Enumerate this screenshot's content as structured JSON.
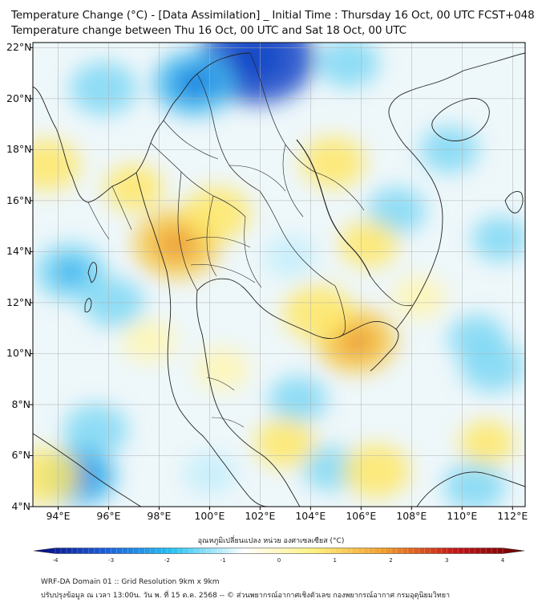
{
  "title": {
    "line1": "Temperature Change (°C) - [Data Assimilation] _ Initial Time : Thursday 16 Oct, 00 UTC FCST+048",
    "line2": "Temperature change between Thu 16 Oct, 00 UTC and Sat 18 Oct, 00 UTC"
  },
  "map": {
    "lat_labels": [
      "22°N",
      "20°N",
      "18°N",
      "16°N",
      "14°N",
      "12°N",
      "10°N",
      "8°N",
      "6°N",
      "4°N"
    ],
    "lon_labels": [
      "94°E",
      "96°E",
      "98°E",
      "100°E",
      "102°E",
      "104°E",
      "106°E",
      "108°E",
      "110°E",
      "112°E"
    ],
    "lat_range": [
      4,
      22.2
    ],
    "lon_range": [
      93,
      112.5
    ],
    "anomalies": [
      {
        "kind": "cool",
        "lon": 101.9,
        "lat": 21.6,
        "value": -2.8
      },
      {
        "kind": "cool",
        "lon": 99.4,
        "lat": 20.6,
        "value": -1.6
      },
      {
        "kind": "cool",
        "lon": 95.8,
        "lat": 20.4,
        "value": -1.1
      },
      {
        "kind": "cool",
        "lon": 105.5,
        "lat": 21.4,
        "value": -0.9
      },
      {
        "kind": "cool",
        "lon": 94.5,
        "lat": 13.2,
        "value": -1.3
      },
      {
        "kind": "cool",
        "lon": 96.2,
        "lat": 12.0,
        "value": -0.9
      },
      {
        "kind": "cool",
        "lon": 95.5,
        "lat": 7.0,
        "value": -1.0
      },
      {
        "kind": "cool",
        "lon": 94.8,
        "lat": 5.2,
        "value": -1.4
      },
      {
        "kind": "cool",
        "lon": 103.5,
        "lat": 8.2,
        "value": -0.8
      },
      {
        "kind": "cool",
        "lon": 104.8,
        "lat": 5.5,
        "value": -0.7
      },
      {
        "kind": "cool",
        "lon": 110.6,
        "lat": 10.6,
        "value": -0.8
      },
      {
        "kind": "cool",
        "lon": 111.2,
        "lat": 9.5,
        "value": -1.0
      },
      {
        "kind": "cool",
        "lon": 109.5,
        "lat": 18.0,
        "value": -0.8
      },
      {
        "kind": "cool",
        "lon": 111.5,
        "lat": 14.5,
        "value": -0.7
      },
      {
        "kind": "cool",
        "lon": 107.4,
        "lat": 15.6,
        "value": -0.8
      },
      {
        "kind": "cool",
        "lon": 103.2,
        "lat": 13.8,
        "value": -0.6
      },
      {
        "kind": "cool",
        "lon": 110.5,
        "lat": 4.8,
        "value": -0.9
      },
      {
        "kind": "cool",
        "lon": 100.0,
        "lat": 5.3,
        "value": -0.6
      },
      {
        "kind": "warm",
        "lon": 98.7,
        "lat": 14.3,
        "value": 1.8
      },
      {
        "kind": "warm",
        "lon": 100.3,
        "lat": 15.5,
        "value": 1.1
      },
      {
        "kind": "warm",
        "lon": 93.6,
        "lat": 17.4,
        "value": 1.0
      },
      {
        "kind": "warm",
        "lon": 97.0,
        "lat": 16.5,
        "value": 0.8
      },
      {
        "kind": "warm",
        "lon": 105.8,
        "lat": 10.5,
        "value": 1.6
      },
      {
        "kind": "warm",
        "lon": 104.3,
        "lat": 11.6,
        "value": 1.2
      },
      {
        "kind": "warm",
        "lon": 104.9,
        "lat": 17.5,
        "value": 1.0
      },
      {
        "kind": "warm",
        "lon": 106.3,
        "lat": 14.3,
        "value": 0.8
      },
      {
        "kind": "warm",
        "lon": 103.0,
        "lat": 6.5,
        "value": 0.9
      },
      {
        "kind": "warm",
        "lon": 106.6,
        "lat": 5.4,
        "value": 1.1
      },
      {
        "kind": "warm",
        "lon": 93.5,
        "lat": 5.2,
        "value": 1.2
      },
      {
        "kind": "warm",
        "lon": 97.6,
        "lat": 10.5,
        "value": 0.6
      },
      {
        "kind": "warm",
        "lon": 111.0,
        "lat": 6.5,
        "value": 0.7
      },
      {
        "kind": "warm",
        "lon": 100.5,
        "lat": 9.4,
        "value": 0.6
      },
      {
        "kind": "warm",
        "lon": 108.3,
        "lat": 12.2,
        "value": 0.6
      }
    ]
  },
  "colorbar": {
    "title": "อุณหภูมิเปลี่ยนแปลง หน่วย องศาเซลเซียส (°C)",
    "min": -4,
    "max": 4,
    "ticks": [
      "-4",
      "-3",
      "-2",
      "-1",
      "0",
      "1",
      "2",
      "3",
      "4"
    ],
    "colors": [
      "#05057a",
      "#1b5cd8",
      "#27c3f2",
      "#ffffff",
      "#fff07a",
      "#f09c2a",
      "#c41616",
      "#6a0000"
    ]
  },
  "footer": {
    "line1": "WRF-DA Domain 01 :: Grid Resolution 9km x 9km",
    "line2": "ปรับปรุงข้อมูล ณ เวลา 13:00น. วัน พ. ที่ 15 ต.ค. 2568 -- © ส่วนพยากรณ์อากาศเชิงตัวเลข กองพยากรณ์อากาศ กรมอุตุนิยมวิทยา"
  }
}
